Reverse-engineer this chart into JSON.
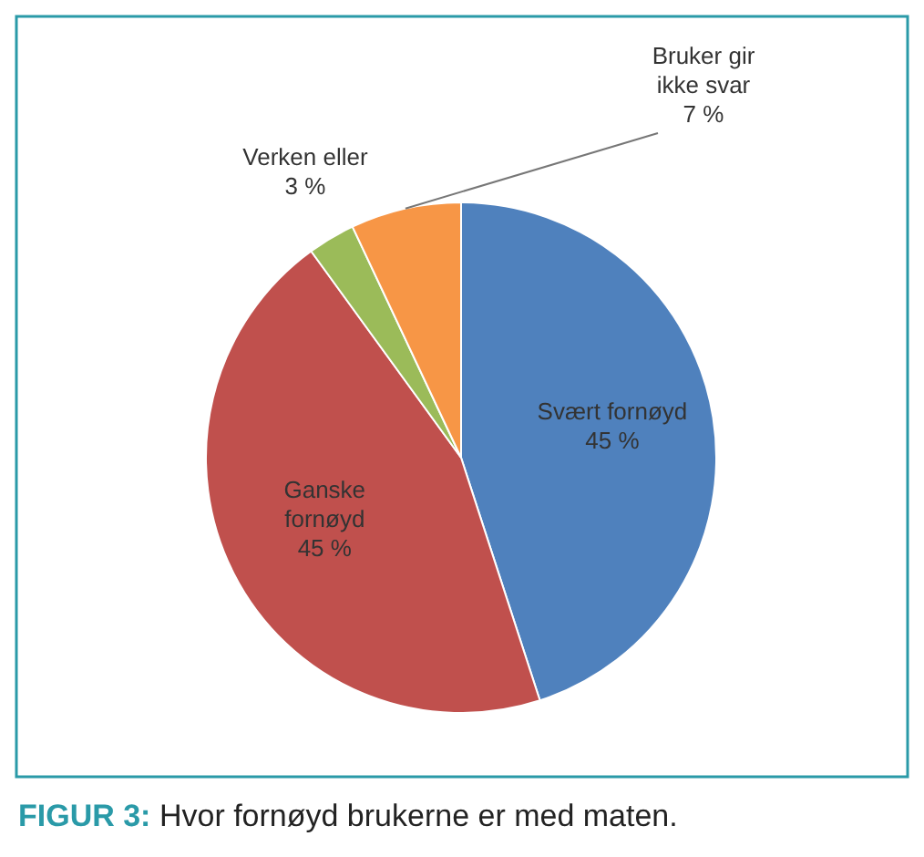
{
  "chart_data": {
    "type": "pie",
    "title": "FIGUR 3: Hvor fornøyd brukerne er med maten.",
    "categories": [
      "Svært fornøyd",
      "Ganske fornøyd",
      "Verken eller",
      "Bruker gir ikke svar"
    ],
    "values": [
      45,
      45,
      3,
      7
    ],
    "value_labels": [
      "45 %",
      "45 %",
      "3 %",
      "7 %"
    ],
    "colors": [
      "#4f81bd",
      "#c0504d",
      "#9bbb59",
      "#f79646"
    ]
  }
}
